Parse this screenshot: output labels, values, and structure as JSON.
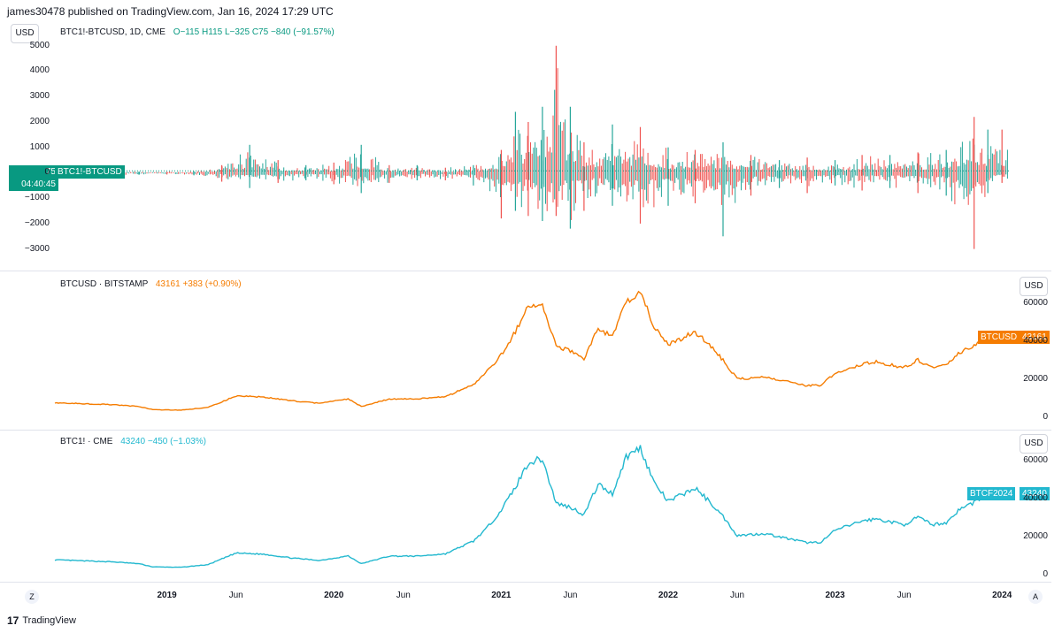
{
  "header": {
    "published": "james30478 published on TradingView.com, Jan 16, 2024 17:29 UTC"
  },
  "footer": {
    "brand": "TradingView",
    "logo_text": "17"
  },
  "buttons": {
    "usd": "USD",
    "z": "Z",
    "a": "A"
  },
  "colors": {
    "up": "#26a69a",
    "down": "#ef5350",
    "orange": "#f57c00",
    "cyan": "#22b8cf",
    "green": "#089981"
  },
  "panes": [
    {
      "legend_symbol": "BTC1!-BTCUSD, 1D, CME",
      "legend_values": "O−115  H115  L−325  C75  −840 (−91.57%)",
      "price_tag": "75",
      "countdown": "04:40:45",
      "series_tag": "BTC1!-BTCUSD",
      "yticks": [
        "5000",
        "4000",
        "3000",
        "2000",
        "1000",
        "0",
        "−1000",
        "−2000",
        "−3000"
      ]
    },
    {
      "legend_symbol": "BTCUSD · BITSTAMP",
      "legend_values": "43161  +383 (+0.90%)",
      "series_tag": "BTCUSD",
      "price_tag": "43161",
      "yticks": [
        "60000",
        "40000",
        "20000",
        "0"
      ]
    },
    {
      "legend_symbol": "BTC1! · CME",
      "legend_values": "43240  −450 (−1.03%)",
      "series_tag": "BTCF2024",
      "price_tag": "43240",
      "yticks": [
        "60000",
        "40000",
        "20000",
        "0"
      ]
    }
  ],
  "xaxis": {
    "labels": [
      "2019",
      "Jun",
      "2020",
      "Jun",
      "2021",
      "Jun",
      "2022",
      "Jun",
      "2023",
      "Jun",
      "2024"
    ]
  },
  "chart_data": [
    {
      "type": "bar",
      "title": "BTC1!-BTCUSD, 1D, CME",
      "ylim": [
        -3500,
        5200
      ],
      "x": [
        "2018-05",
        "2018-07",
        "2018-09",
        "2018-11",
        "2019-01",
        "2019-03",
        "2019-05",
        "2019-07",
        "2019-09",
        "2019-11",
        "2020-01",
        "2020-03",
        "2020-05",
        "2020-07",
        "2020-09",
        "2020-11",
        "2021-01",
        "2021-02",
        "2021-03",
        "2021-04",
        "2021-05",
        "2021-06",
        "2021-07",
        "2021-09",
        "2021-11",
        "2022-01",
        "2022-03",
        "2022-05",
        "2022-07",
        "2022-09",
        "2022-11",
        "2023-01",
        "2023-03",
        "2023-05",
        "2023-07",
        "2023-09",
        "2023-11",
        "2023-12",
        "2024-01"
      ],
      "highs": [
        80,
        60,
        70,
        50,
        40,
        60,
        300,
        1100,
        500,
        300,
        400,
        1100,
        300,
        300,
        200,
        300,
        900,
        2400,
        2000,
        2600,
        5000,
        2600,
        1200,
        1900,
        1800,
        1000,
        900,
        1200,
        700,
        500,
        600,
        500,
        700,
        700,
        800,
        900,
        2200,
        1700,
        1700
      ],
      "lows": [
        -150,
        -100,
        -120,
        -80,
        -70,
        -100,
        -350,
        -600,
        -400,
        -300,
        -450,
        -800,
        -400,
        -300,
        -300,
        -500,
        -1800,
        -1500,
        -1700,
        -1900,
        -1700,
        -2200,
        -1500,
        -1300,
        -2000,
        -1300,
        -1200,
        -2500,
        -900,
        -600,
        -800,
        -500,
        -700,
        -600,
        -800,
        -900,
        -3000,
        -800,
        -400
      ],
      "last": 75,
      "ylabel": ""
    },
    {
      "type": "line",
      "title": "BTCUSD · BITSTAMP",
      "ylim": [
        -3000,
        68000
      ],
      "x": [
        "2018-05",
        "2018-07",
        "2018-09",
        "2018-11",
        "2018-12",
        "2019-02",
        "2019-04",
        "2019-06",
        "2019-08",
        "2019-10",
        "2019-12",
        "2020-02",
        "2020-03",
        "2020-05",
        "2020-07",
        "2020-09",
        "2020-11",
        "2020-12",
        "2021-01",
        "2021-02",
        "2021-03",
        "2021-04",
        "2021-05",
        "2021-06",
        "2021-07",
        "2021-08",
        "2021-09",
        "2021-10",
        "2021-11",
        "2021-12",
        "2022-01",
        "2022-03",
        "2022-04",
        "2022-05",
        "2022-06",
        "2022-08",
        "2022-09",
        "2022-11",
        "2022-12",
        "2023-01",
        "2023-03",
        "2023-04",
        "2023-06",
        "2023-07",
        "2023-08",
        "2023-09",
        "2023-10",
        "2023-11",
        "2023-12",
        "2024-01"
      ],
      "values": [
        7500,
        7000,
        6500,
        5500,
        3800,
        3600,
        5000,
        11000,
        10500,
        8500,
        7200,
        9500,
        5500,
        9500,
        9500,
        10700,
        17000,
        24000,
        33000,
        45000,
        58000,
        60000,
        37000,
        35000,
        31000,
        47000,
        42000,
        61000,
        66000,
        48000,
        38000,
        45000,
        38000,
        30000,
        20000,
        21000,
        19500,
        16500,
        16800,
        23000,
        28000,
        29000,
        26000,
        30000,
        26000,
        27000,
        34000,
        37500,
        43000,
        43161
      ],
      "last": 43161,
      "ylabel": ""
    },
    {
      "type": "line",
      "title": "BTC1! · CME",
      "ylim": [
        -3000,
        68000
      ],
      "x": [
        "2018-05",
        "2018-07",
        "2018-09",
        "2018-11",
        "2018-12",
        "2019-02",
        "2019-04",
        "2019-06",
        "2019-08",
        "2019-10",
        "2019-12",
        "2020-02",
        "2020-03",
        "2020-05",
        "2020-07",
        "2020-09",
        "2020-11",
        "2020-12",
        "2021-01",
        "2021-02",
        "2021-03",
        "2021-04",
        "2021-05",
        "2021-06",
        "2021-07",
        "2021-08",
        "2021-09",
        "2021-10",
        "2021-11",
        "2021-12",
        "2022-01",
        "2022-03",
        "2022-04",
        "2022-05",
        "2022-06",
        "2022-08",
        "2022-09",
        "2022-11",
        "2022-12",
        "2023-01",
        "2023-03",
        "2023-04",
        "2023-06",
        "2023-07",
        "2023-08",
        "2023-09",
        "2023-10",
        "2023-11",
        "2023-12",
        "2024-01"
      ],
      "values": [
        7600,
        7100,
        6600,
        5600,
        3900,
        3700,
        5100,
        11200,
        10600,
        8600,
        7300,
        9700,
        5600,
        9600,
        9600,
        10800,
        17500,
        24500,
        34000,
        46000,
        59000,
        61000,
        37500,
        35500,
        31500,
        47500,
        42500,
        62000,
        67000,
        48500,
        38500,
        45500,
        38500,
        30500,
        20500,
        21500,
        19800,
        16700,
        17000,
        23200,
        28200,
        29200,
        26200,
        30200,
        26200,
        27200,
        34500,
        38000,
        43200,
        43240
      ],
      "last": 43240,
      "ylabel": ""
    }
  ]
}
